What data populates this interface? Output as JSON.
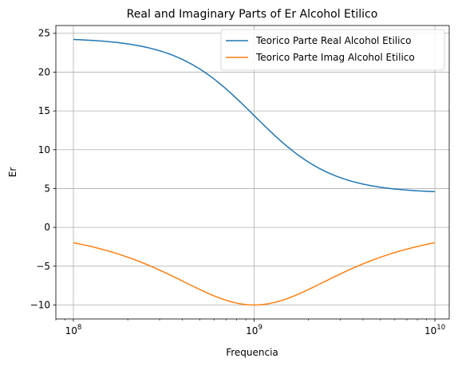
{
  "chart_data": {
    "type": "line",
    "title": "Real and Imaginary Parts of Er Alcohol Etilico",
    "xlabel": "Frequencia",
    "ylabel": "Er",
    "xscale": "log",
    "xlim": [
      80000000,
      12000000000
    ],
    "ylim": [
      -11.8,
      26
    ],
    "grid": true,
    "legend_position": "top-right",
    "x_ticks": [
      100000000,
      1000000000,
      10000000000
    ],
    "x_tick_labels": [
      {
        "base": "10",
        "exp": "8"
      },
      {
        "base": "10",
        "exp": "9"
      },
      {
        "base": "10",
        "exp": "10"
      }
    ],
    "y_ticks": [
      -10,
      -5,
      0,
      5,
      10,
      15,
      20,
      25
    ],
    "y_tick_labels": [
      "−10",
      "−5",
      "0",
      "5",
      "10",
      "15",
      "20",
      "25"
    ],
    "model": {
      "eps_static": 24.4,
      "eps_inf": 4.4,
      "relaxation_frequency": 1000000000
    },
    "series": [
      {
        "name": "Teorico Parte Real Alcohol Etilico",
        "color": "#1f77b4",
        "part": "real"
      },
      {
        "name": "Teorico Parte Imag Alcohol Etilico",
        "color": "#ff7f0e",
        "part": "imag"
      }
    ]
  }
}
